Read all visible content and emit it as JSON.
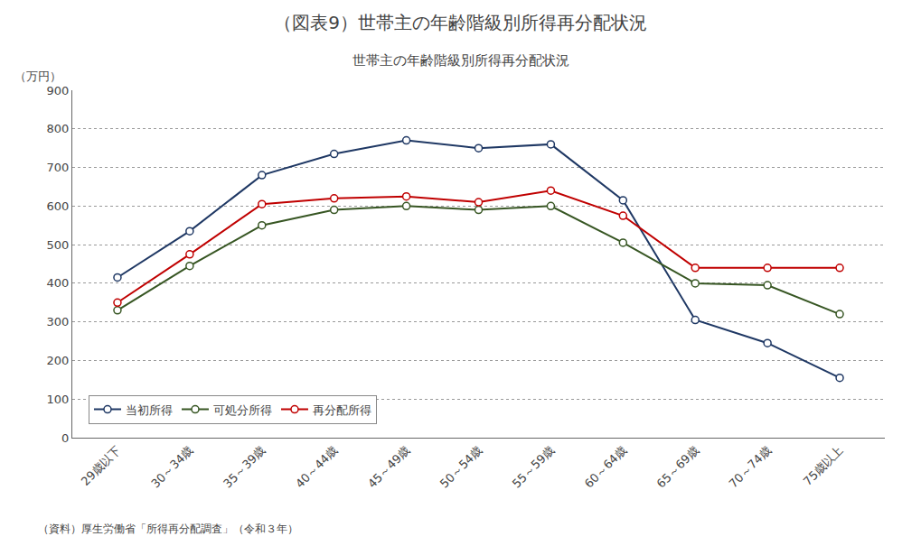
{
  "chart_data": {
    "type": "line",
    "title": "（図表9）世帯主の年齢階級別所得再分配状況",
    "subtitle": "世帯主の年齢階級別所得再分配状況",
    "ylabel": "（万円）",
    "source": "（資料）厚生労働省「所得再分配調査」（令和３年）",
    "categories": [
      "29歳以下",
      "30～34歳",
      "35～39歳",
      "40～44歳",
      "45～49歳",
      "50～54歳",
      "55～59歳",
      "60～64歳",
      "65～69歳",
      "70～74歳",
      "75歳以上"
    ],
    "series": [
      {
        "name": "当初所得",
        "color": "#1f3864",
        "values": [
          415,
          535,
          680,
          735,
          770,
          750,
          760,
          615,
          305,
          245,
          155
        ]
      },
      {
        "name": "可処分所得",
        "color": "#375623",
        "values": [
          330,
          445,
          550,
          590,
          600,
          590,
          600,
          505,
          400,
          395,
          320
        ]
      },
      {
        "name": "再分配所得",
        "color": "#c00000",
        "values": [
          350,
          475,
          605,
          620,
          625,
          610,
          640,
          575,
          440,
          440,
          440
        ]
      }
    ],
    "ylim": [
      0,
      900
    ],
    "yticks": [
      0,
      100,
      200,
      300,
      400,
      500,
      600,
      700,
      800,
      900
    ],
    "grid": "y",
    "legend": "lower left",
    "marker": "circle",
    "line_style": "solid"
  }
}
